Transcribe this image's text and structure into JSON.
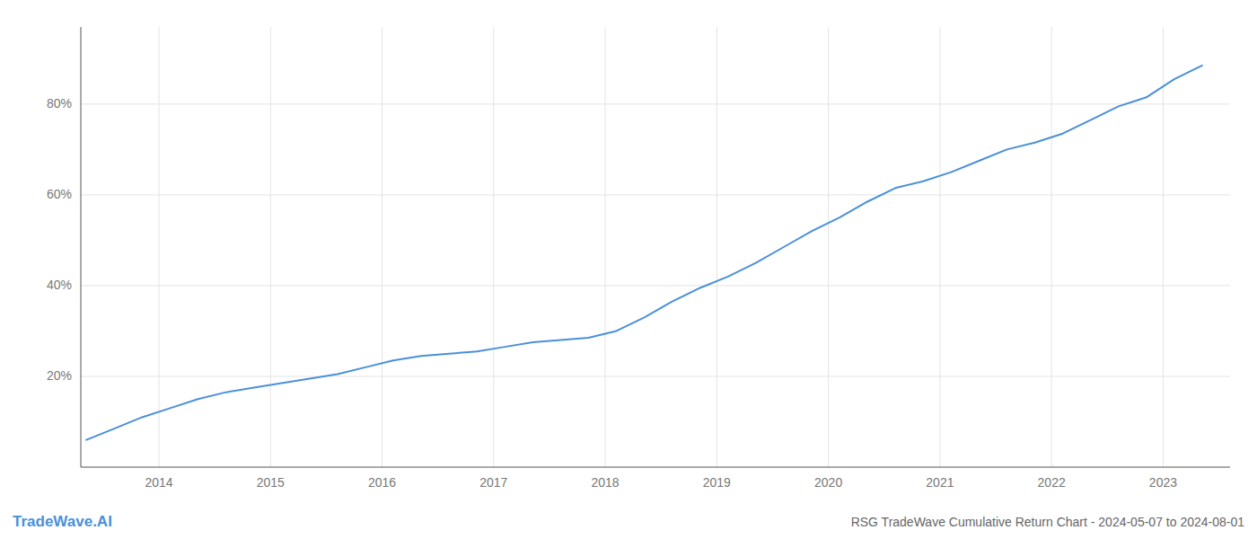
{
  "chart_data": {
    "type": "line",
    "title": "RSG TradeWave Cumulative Return Chart - 2024-05-07 to 2024-08-01",
    "annotations": [
      "TradeWave.AI"
    ],
    "x": [
      2013.35,
      2013.6,
      2013.85,
      2014.1,
      2014.35,
      2014.6,
      2014.85,
      2015.1,
      2015.35,
      2015.6,
      2015.85,
      2016.1,
      2016.35,
      2016.6,
      2016.85,
      2017.1,
      2017.35,
      2017.6,
      2017.85,
      2018.1,
      2018.35,
      2018.6,
      2018.85,
      2019.1,
      2019.35,
      2019.6,
      2019.85,
      2020.1,
      2020.35,
      2020.6,
      2020.85,
      2021.1,
      2021.35,
      2021.6,
      2021.85,
      2022.1,
      2022.35,
      2022.6,
      2022.85,
      2023.1,
      2023.35
    ],
    "values": [
      6.0,
      8.5,
      11.0,
      13.0,
      15.0,
      16.5,
      17.5,
      18.5,
      19.5,
      20.5,
      22.0,
      23.5,
      24.5,
      25.0,
      25.5,
      26.5,
      27.5,
      28.0,
      28.5,
      30.0,
      33.0,
      36.5,
      39.5,
      42.0,
      45.0,
      48.5,
      52.0,
      55.0,
      58.5,
      61.5,
      63.0,
      65.0,
      67.5,
      70.0,
      71.5,
      73.5,
      76.5,
      79.5,
      81.5,
      85.5,
      88.5
    ],
    "color": "#4a90d9",
    "xlim": [
      2013.3,
      2023.6
    ],
    "xticks": [
      2014,
      2015,
      2016,
      2017,
      2018,
      2019,
      2020,
      2021,
      2022,
      2023
    ],
    "ylim": [
      0,
      97
    ],
    "yticks": [
      {
        "value": 20,
        "label": "20%"
      },
      {
        "value": 40,
        "label": "40%"
      },
      {
        "value": 60,
        "label": "60%"
      },
      {
        "value": 80,
        "label": "80%"
      }
    ],
    "grid": true
  }
}
